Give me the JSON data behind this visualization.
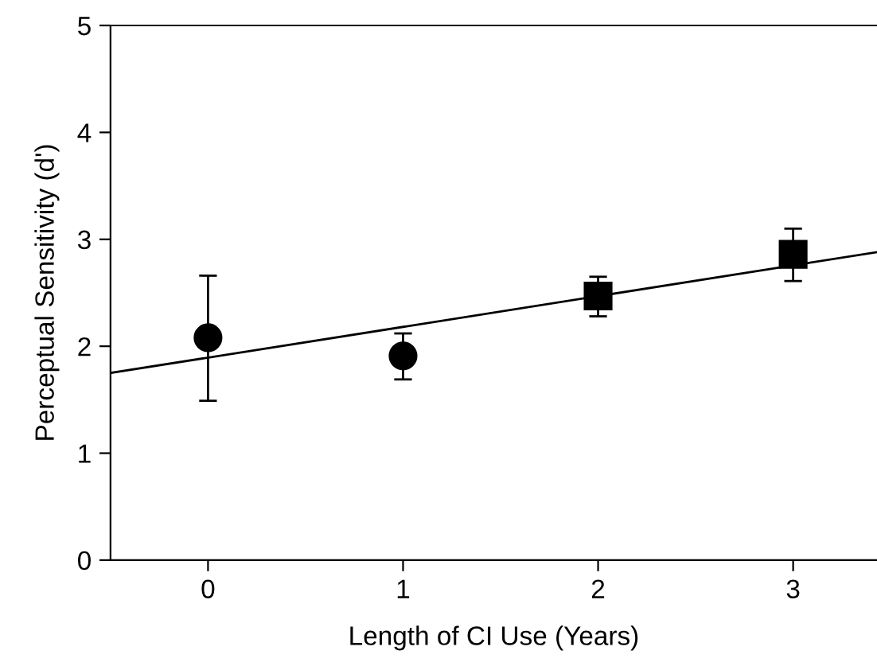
{
  "chart_data": {
    "type": "scatter",
    "xlabel": "Length of CI Use (Years)",
    "ylabel": "Perceptual Sensitivity (d')",
    "xlim": [
      -0.5,
      3.43
    ],
    "ylim": [
      0,
      5
    ],
    "xticks": [
      0,
      1,
      2,
      3
    ],
    "yticks": [
      0,
      1,
      2,
      3,
      4,
      5
    ],
    "grid": false,
    "legend": false,
    "series": [
      {
        "color": "#000000",
        "marker": "circle",
        "x": [
          0,
          1
        ],
        "values": [
          2.08,
          1.91
        ],
        "errors": [
          [
            1.49,
            2.66
          ],
          [
            1.69,
            2.12
          ]
        ]
      },
      {
        "color": "#000000",
        "marker": "square",
        "x": [
          2,
          3
        ],
        "values": [
          2.47,
          2.86
        ],
        "errors": [
          [
            2.28,
            2.65
          ],
          [
            2.61,
            3.1
          ]
        ]
      },
      {
        "type": "line",
        "color": "#000000",
        "marker": "none",
        "line_style": "solid",
        "x": [
          -0.5,
          3.43
        ],
        "values": [
          1.75,
          2.88
        ]
      }
    ]
  }
}
